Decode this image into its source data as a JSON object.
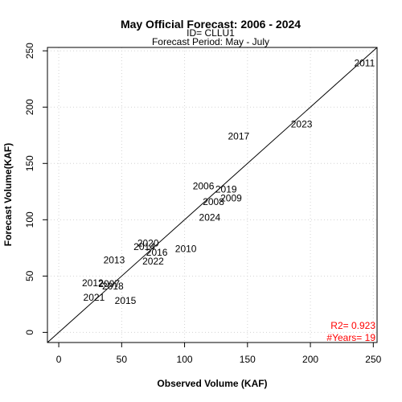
{
  "chart_data": {
    "type": "scatter",
    "title": "May Official Forecast: 2006 - 2024",
    "subtitle_lines": [
      "ID= CLLU1",
      "Forecast Period:  May - July"
    ],
    "xlabel": "Observed Volume (KAF)",
    "ylabel": "Forecast Volume(KAF)",
    "xlim": [
      -9,
      253
    ],
    "ylim": [
      -9,
      253
    ],
    "x_ticks": [
      0,
      50,
      100,
      150,
      200,
      250
    ],
    "y_ticks": [
      0,
      50,
      100,
      150,
      200,
      250
    ],
    "grid": true,
    "reference_line": "1:1",
    "marker": "year-label",
    "points": [
      {
        "label": "2006",
        "x": 115,
        "y": 130
      },
      {
        "label": "2007",
        "x": 40,
        "y": 43
      },
      {
        "label": "2008",
        "x": 123,
        "y": 116
      },
      {
        "label": "2009",
        "x": 137,
        "y": 119
      },
      {
        "label": "2010",
        "x": 101,
        "y": 74
      },
      {
        "label": "2011",
        "x": 243,
        "y": 239
      },
      {
        "label": "2012",
        "x": 27,
        "y": 44
      },
      {
        "label": "2013",
        "x": 44,
        "y": 64
      },
      {
        "label": "2014",
        "x": 68,
        "y": 76
      },
      {
        "label": "2015",
        "x": 53,
        "y": 28
      },
      {
        "label": "2016",
        "x": 78,
        "y": 71
      },
      {
        "label": "2017",
        "x": 143,
        "y": 174
      },
      {
        "label": "2018",
        "x": 43,
        "y": 41
      },
      {
        "label": "2019",
        "x": 133,
        "y": 127
      },
      {
        "label": "2020",
        "x": 71,
        "y": 79
      },
      {
        "label": "2021",
        "x": 28,
        "y": 31
      },
      {
        "label": "2022",
        "x": 75,
        "y": 63
      },
      {
        "label": "2023",
        "x": 193,
        "y": 185
      },
      {
        "label": "2024",
        "x": 120,
        "y": 102
      }
    ],
    "stats": [
      {
        "text": "R2=  0.923",
        "color": "#ff0000"
      },
      {
        "text": "#Years=  19",
        "color": "#ff0000"
      }
    ]
  }
}
